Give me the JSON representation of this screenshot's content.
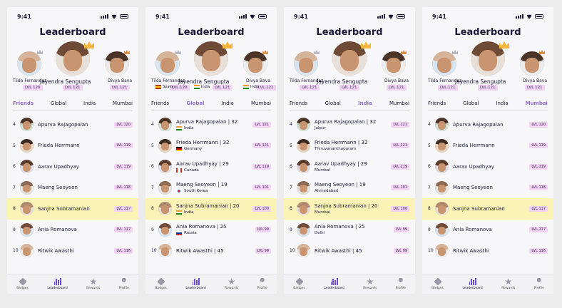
{
  "status_time": "9:41",
  "title": "Leaderboard",
  "nav": [
    "Badges",
    "Leaderboard",
    "Rewards",
    "Profile"
  ],
  "tabs": [
    "Friends",
    "Global",
    "India",
    "Mumbai"
  ],
  "colors": {
    "accent": "#8e6fd8",
    "level_badge": "#f2d3f3",
    "highlight_row": "#fbf3b5"
  },
  "screens": [
    {
      "active_tab": "Friends",
      "podium": {
        "first": {
          "name": "Jayendra Sengupta",
          "level": "LVL 121"
        },
        "second": {
          "name": "Tilda Fernandez",
          "level": "LVL 120"
        },
        "third": {
          "name": "Divya Bava",
          "level": "LVL 121"
        }
      },
      "rows": [
        {
          "rank": "4",
          "name": "Apurva Rajagopalan",
          "level": "LVL 120"
        },
        {
          "rank": "5",
          "name": "Frieda Herrmann",
          "level": "LVL 119"
        },
        {
          "rank": "6",
          "name": "Aarav Upadhyay",
          "level": "LVL 119"
        },
        {
          "rank": "7",
          "name": "Maeng Seoyeon",
          "level": "LVL 118"
        },
        {
          "rank": "8",
          "name": "Sanjna Subramanian",
          "level": "LVL 117",
          "me": true
        },
        {
          "rank": "9",
          "name": "Ania Romanova",
          "level": "LVL 117"
        },
        {
          "rank": "10",
          "name": "Ritwik Awasthi",
          "level": "LVL 116"
        }
      ]
    },
    {
      "active_tab": "Global",
      "podium": {
        "first": {
          "name": "Jayendra Sengupta",
          "level": "LVL 121",
          "country": "India"
        },
        "second": {
          "name": "Tilda Fernandez",
          "level": "LVL 120",
          "country": "Spain"
        },
        "third": {
          "name": "Divya Bava",
          "level": "LVL 121",
          "country": "India"
        }
      },
      "rows": [
        {
          "rank": "4",
          "name": "Apurva Rajagopalan",
          "age": "32",
          "sub": "India",
          "level": "LVL 121"
        },
        {
          "rank": "5",
          "name": "Frieda Herrmann",
          "age": "32",
          "sub": "Germany",
          "level": "LVL 121"
        },
        {
          "rank": "6",
          "name": "Aarav Upadhyay",
          "age": "29",
          "sub": "Canada",
          "level": "LVL 119"
        },
        {
          "rank": "7",
          "name": "Maeng Seoyeon",
          "age": "19",
          "sub": "South Korea",
          "level": "LVL 101"
        },
        {
          "rank": "8",
          "name": "Sanjna Subramanian",
          "age": "20",
          "sub": "India",
          "level": "LVL 100",
          "me": true
        },
        {
          "rank": "9",
          "name": "Ania Romanova",
          "age": "25",
          "sub": "Russia",
          "level": "LVL 99"
        },
        {
          "rank": "10",
          "name": "Ritwik Awasthi",
          "age": "45",
          "sub": "",
          "level": "LVL 99"
        }
      ]
    },
    {
      "active_tab": "India",
      "podium": {
        "first": {
          "name": "Jayendra Sengupta",
          "level": "LVL 121"
        },
        "second": {
          "name": "Tilda Fernandez",
          "level": "LVL 121"
        },
        "third": {
          "name": "Divya Bava",
          "level": "LVL 121"
        }
      },
      "rows": [
        {
          "rank": "4",
          "name": "Apurva Rajagopalan",
          "age": "32",
          "sub": "Jaipur",
          "level": "LVL 121"
        },
        {
          "rank": "5",
          "name": "Frieda Herrmann",
          "age": "32",
          "sub": "Thiruvananthapuram",
          "level": "LVL 121"
        },
        {
          "rank": "6",
          "name": "Aarav Upadhyay",
          "age": "29",
          "sub": "Mumbai",
          "level": "LVL 119"
        },
        {
          "rank": "7",
          "name": "Maeng Seoyeon",
          "age": "19",
          "sub": "Ahmedabad",
          "level": "LVL 101"
        },
        {
          "rank": "8",
          "name": "Sanjna Subramanian",
          "age": "20",
          "sub": "Mumbai",
          "level": "LVL 100",
          "me": true
        },
        {
          "rank": "9",
          "name": "Ania Romanova",
          "age": "25",
          "sub": "Delhi",
          "level": "LVL 99"
        },
        {
          "rank": "10",
          "name": "Ritwik Awasthi",
          "age": "45",
          "sub": "",
          "level": "LVL 99"
        }
      ]
    },
    {
      "active_tab": "Mumbai",
      "podium": {
        "first": {
          "name": "Jayendra Sengupta",
          "level": "LVL 121"
        },
        "second": {
          "name": "Tilda Fernandez",
          "level": "LVL 121"
        },
        "third": {
          "name": "Divya Bava",
          "level": "LVL 121"
        }
      },
      "rows": [
        {
          "rank": "4",
          "name": "Apurva Rajagopalan",
          "level": "LVL 120"
        },
        {
          "rank": "5",
          "name": "Frieda Herrmann",
          "level": "LVL 119"
        },
        {
          "rank": "6",
          "name": "Aarav Upadhyay",
          "level": "LVL 119"
        },
        {
          "rank": "7",
          "name": "Maeng Seoyeon",
          "level": "LVL 118"
        },
        {
          "rank": "8",
          "name": "Sanjna Subramanian",
          "level": "LVL 117",
          "me": true
        },
        {
          "rank": "9",
          "name": "Ania Romanova",
          "level": "LVL 117"
        },
        {
          "rank": "10",
          "name": "Ritwik Awasthi",
          "level": "LVL 116"
        }
      ]
    }
  ]
}
